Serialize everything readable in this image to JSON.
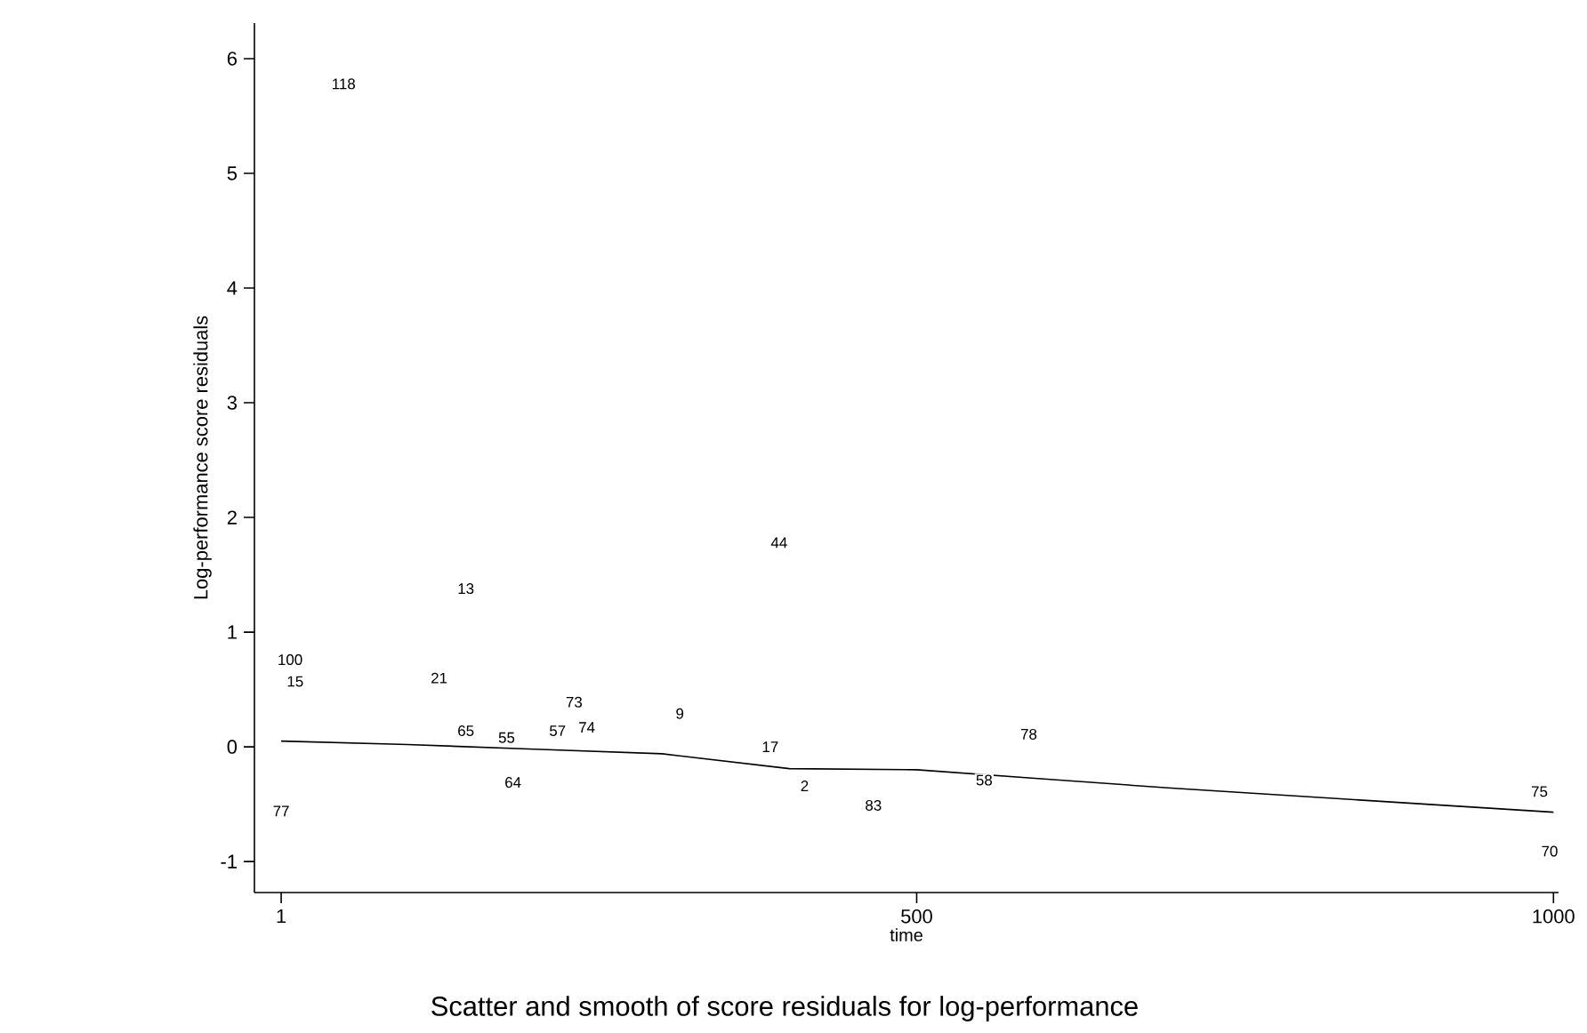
{
  "chart_data": {
    "type": "scatter",
    "title": "Scatter and smooth of score residuals for log-performance",
    "xlabel": "time",
    "ylabel": "Log-performance score residuals",
    "xlim": [
      -20,
      1004
    ],
    "ylim": [
      -1.27,
      6.31
    ],
    "xticks": [
      1,
      500,
      1000
    ],
    "yticks": [
      -1,
      0,
      1,
      2,
      3,
      4,
      5,
      6
    ],
    "grid": false,
    "legend": false,
    "series": [
      {
        "type": "line",
        "line_style": "solid",
        "color": "#000000",
        "x": [
          1,
          100,
          200,
          300,
          400,
          500,
          600,
          700,
          800,
          900,
          1000
        ],
        "values": [
          0.05,
          0.02,
          -0.02,
          -0.06,
          -0.19,
          -0.2,
          -0.28,
          -0.36,
          -0.43,
          -0.5,
          -0.57
        ]
      }
    ],
    "annotations": [
      {
        "text": "118",
        "x": 50,
        "y": 5.78
      },
      {
        "text": "44",
        "x": 392,
        "y": 1.78
      },
      {
        "text": "13",
        "x": 146,
        "y": 1.38
      },
      {
        "text": "100",
        "x": 8,
        "y": 0.76
      },
      {
        "text": "21",
        "x": 125,
        "y": 0.6
      },
      {
        "text": "15",
        "x": 12,
        "y": 0.57
      },
      {
        "text": "73",
        "x": 231,
        "y": 0.39
      },
      {
        "text": "74",
        "x": 241,
        "y": 0.17
      },
      {
        "text": "57",
        "x": 218,
        "y": 0.14
      },
      {
        "text": "9",
        "x": 314,
        "y": 0.29
      },
      {
        "text": "17",
        "x": 385,
        "y": 0.0
      },
      {
        "text": "78",
        "x": 588,
        "y": 0.11
      },
      {
        "text": "55",
        "x": 178,
        "y": 0.08
      },
      {
        "text": "65",
        "x": 146,
        "y": 0.14
      },
      {
        "text": "64",
        "x": 183,
        "y": -0.31
      },
      {
        "text": "2",
        "x": 412,
        "y": -0.34
      },
      {
        "text": "83",
        "x": 466,
        "y": -0.51
      },
      {
        "text": "58",
        "x": 553,
        "y": -0.29
      },
      {
        "text": "75",
        "x": 989,
        "y": -0.39
      },
      {
        "text": "70",
        "x": 997,
        "y": -0.91
      },
      {
        "text": "77",
        "x": 1,
        "y": -0.56
      }
    ]
  }
}
